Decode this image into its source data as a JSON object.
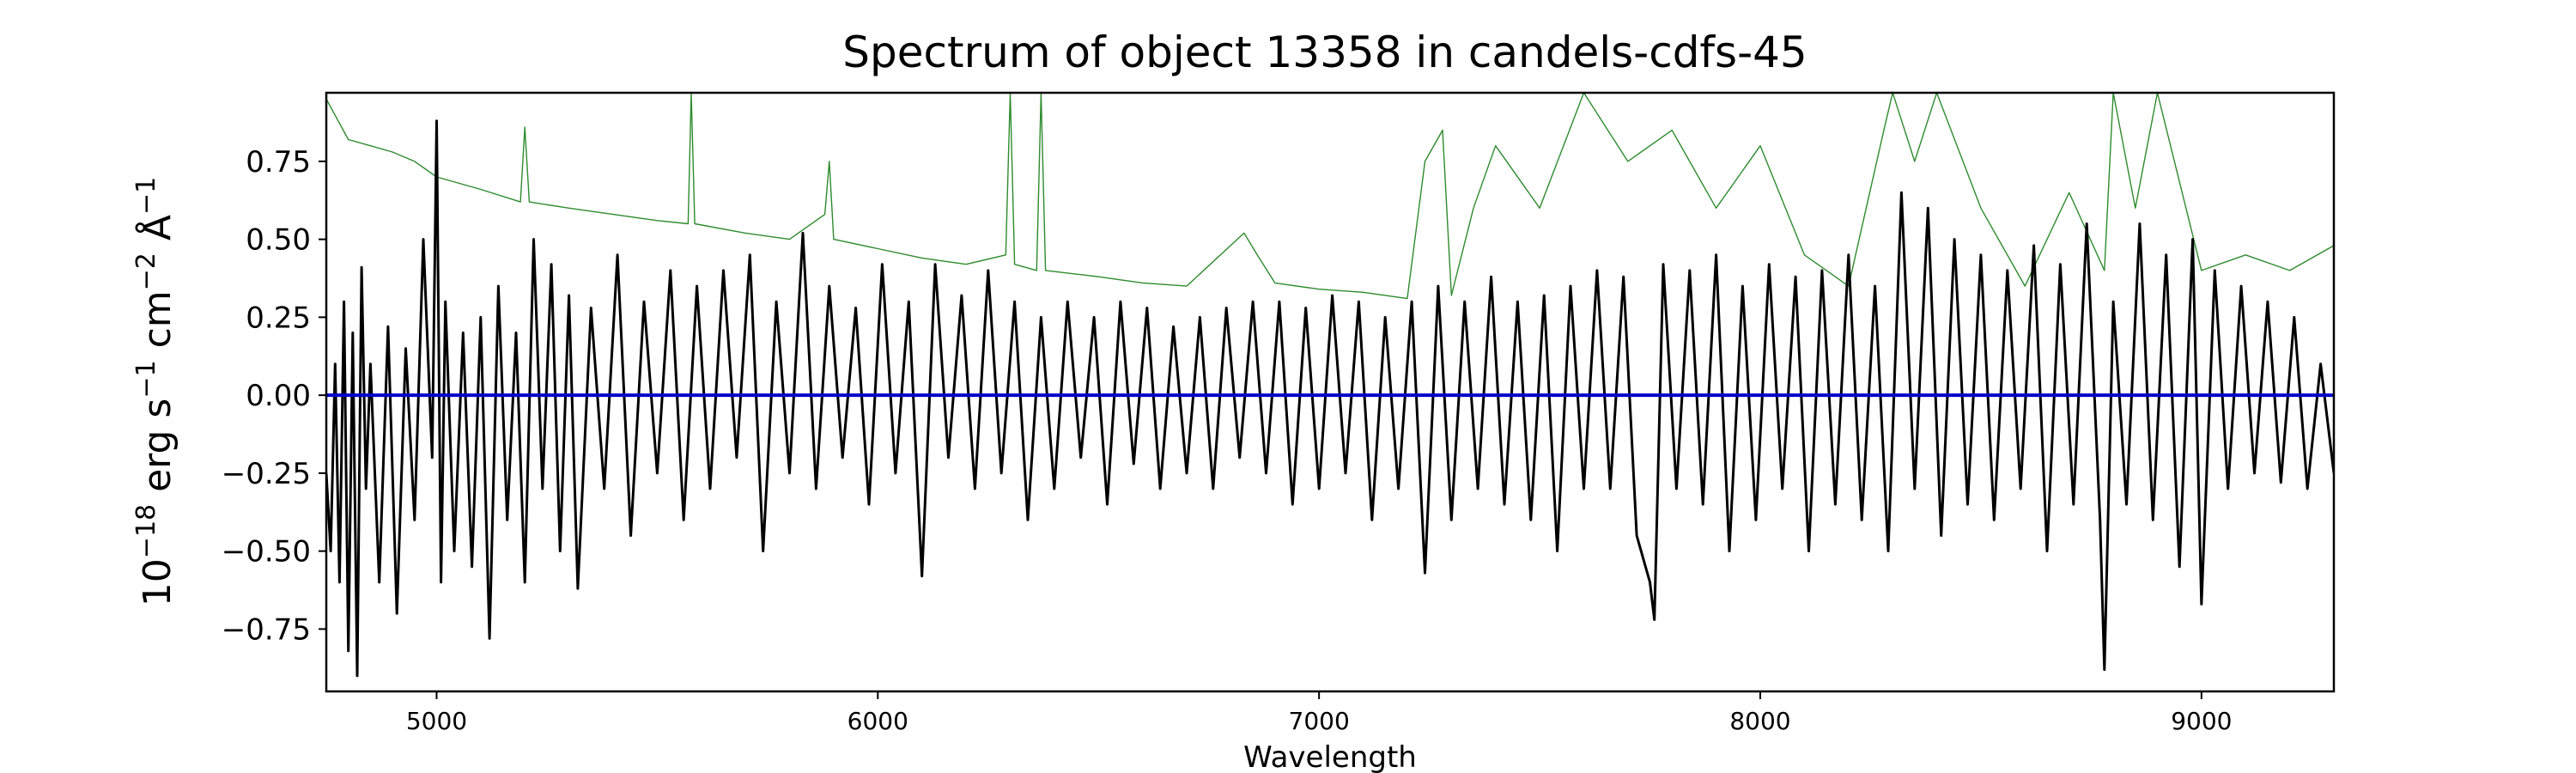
{
  "chart_data": {
    "type": "line",
    "title": "Spectrum of object 13358 in candels-cdfs-45",
    "xlabel": "Wavelength",
    "ylabel_base": "10",
    "ylabel_exp": "−18",
    "ylabel_units": [
      {
        "text": "erg s",
        "sup": "−1"
      },
      {
        "text": "cm",
        "sup": "−2"
      },
      {
        "text": "Å",
        "sup": "−1"
      }
    ],
    "xlim": [
      4750,
      9300
    ],
    "ylim": [
      -0.95,
      0.97
    ],
    "grid": false,
    "xticks": [
      5000,
      6000,
      7000,
      8000,
      9000
    ],
    "xtick_labels": [
      "5000",
      "6000",
      "7000",
      "8000",
      "9000"
    ],
    "yticks": [
      -0.75,
      -0.5,
      -0.25,
      0.0,
      0.25,
      0.5,
      0.75
    ],
    "ytick_labels": [
      "−0.75",
      "−0.50",
      "−0.25",
      "0.00",
      "0.25",
      "0.50",
      "0.75"
    ],
    "colors": {
      "flux": "#000000",
      "noise": "#2e8b2e",
      "zero": "#0000cc"
    },
    "series": [
      {
        "role": "noise",
        "x": [
          4750,
          4800,
          4850,
          4900,
          4950,
          5000,
          5100,
          5190,
          5200,
          5210,
          5300,
          5400,
          5500,
          5570,
          5577,
          5585,
          5700,
          5800,
          5880,
          5890,
          5900,
          6000,
          6100,
          6200,
          6290,
          6300,
          6310,
          6360,
          6370,
          6380,
          6500,
          6600,
          6700,
          6830,
          6860,
          6900,
          7000,
          7100,
          7200,
          7240,
          7280,
          7300,
          7350,
          7400,
          7500,
          7600,
          7700,
          7800,
          7900,
          8000,
          8100,
          8200,
          8280,
          8300,
          8350,
          8400,
          8500,
          8600,
          8700,
          8780,
          8800,
          8850,
          8900,
          9000,
          9100,
          9200,
          9300
        ],
        "values": [
          0.95,
          0.82,
          0.8,
          0.78,
          0.75,
          0.7,
          0.66,
          0.62,
          0.86,
          0.62,
          0.6,
          0.58,
          0.56,
          0.55,
          0.97,
          0.55,
          0.52,
          0.5,
          0.58,
          0.75,
          0.5,
          0.47,
          0.44,
          0.42,
          0.45,
          0.97,
          0.42,
          0.4,
          0.97,
          0.4,
          0.38,
          0.36,
          0.35,
          0.52,
          0.45,
          0.36,
          0.34,
          0.33,
          0.31,
          0.75,
          0.85,
          0.32,
          0.6,
          0.8,
          0.6,
          0.97,
          0.75,
          0.85,
          0.6,
          0.8,
          0.45,
          0.35,
          0.85,
          0.97,
          0.75,
          0.97,
          0.6,
          0.35,
          0.65,
          0.4,
          0.97,
          0.6,
          0.97,
          0.4,
          0.45,
          0.4,
          0.48
        ]
      },
      {
        "role": "flux",
        "x": [
          4750,
          4760,
          4770,
          4780,
          4790,
          4800,
          4810,
          4820,
          4830,
          4840,
          4850,
          4870,
          4890,
          4910,
          4930,
          4950,
          4970,
          4990,
          5000,
          5010,
          5020,
          5040,
          5060,
          5080,
          5100,
          5120,
          5140,
          5160,
          5180,
          5200,
          5220,
          5240,
          5260,
          5280,
          5300,
          5320,
          5350,
          5380,
          5410,
          5440,
          5470,
          5500,
          5530,
          5560,
          5590,
          5620,
          5650,
          5680,
          5710,
          5740,
          5770,
          5800,
          5830,
          5860,
          5890,
          5920,
          5950,
          5980,
          6010,
          6040,
          6070,
          6100,
          6130,
          6160,
          6190,
          6220,
          6250,
          6280,
          6310,
          6340,
          6370,
          6400,
          6430,
          6460,
          6490,
          6520,
          6550,
          6580,
          6610,
          6640,
          6670,
          6700,
          6730,
          6760,
          6790,
          6820,
          6850,
          6880,
          6910,
          6940,
          6970,
          7000,
          7030,
          7060,
          7090,
          7120,
          7150,
          7180,
          7210,
          7240,
          7270,
          7300,
          7330,
          7360,
          7390,
          7420,
          7450,
          7480,
          7510,
          7540,
          7570,
          7600,
          7630,
          7660,
          7690,
          7720,
          7750,
          7760,
          7780,
          7810,
          7840,
          7870,
          7900,
          7930,
          7960,
          7990,
          8020,
          8050,
          8080,
          8110,
          8140,
          8170,
          8200,
          8230,
          8260,
          8290,
          8320,
          8350,
          8380,
          8410,
          8440,
          8470,
          8500,
          8530,
          8560,
          8590,
          8620,
          8650,
          8680,
          8710,
          8740,
          8770,
          8780,
          8800,
          8830,
          8860,
          8890,
          8920,
          8950,
          8980,
          9000,
          9030,
          9060,
          9090,
          9120,
          9150,
          9180,
          9210,
          9240,
          9270,
          9300
        ],
        "values": [
          -0.25,
          -0.5,
          0.1,
          -0.6,
          0.3,
          -0.82,
          0.2,
          -0.9,
          0.41,
          -0.3,
          0.1,
          -0.6,
          0.22,
          -0.7,
          0.15,
          -0.4,
          0.5,
          -0.2,
          0.88,
          -0.6,
          0.3,
          -0.5,
          0.2,
          -0.55,
          0.25,
          -0.78,
          0.35,
          -0.4,
          0.2,
          -0.6,
          0.5,
          -0.3,
          0.42,
          -0.5,
          0.32,
          -0.62,
          0.28,
          -0.3,
          0.45,
          -0.45,
          0.3,
          -0.25,
          0.4,
          -0.4,
          0.35,
          -0.3,
          0.4,
          -0.2,
          0.45,
          -0.5,
          0.3,
          -0.25,
          0.52,
          -0.3,
          0.35,
          -0.2,
          0.28,
          -0.35,
          0.42,
          -0.25,
          0.3,
          -0.58,
          0.42,
          -0.2,
          0.32,
          -0.3,
          0.4,
          -0.25,
          0.3,
          -0.4,
          0.25,
          -0.3,
          0.3,
          -0.2,
          0.25,
          -0.35,
          0.3,
          -0.22,
          0.28,
          -0.3,
          0.22,
          -0.25,
          0.25,
          -0.3,
          0.28,
          -0.2,
          0.3,
          -0.25,
          0.3,
          -0.35,
          0.28,
          -0.3,
          0.32,
          -0.25,
          0.3,
          -0.4,
          0.25,
          -0.3,
          0.3,
          -0.57,
          0.35,
          -0.4,
          0.3,
          -0.3,
          0.38,
          -0.35,
          0.3,
          -0.4,
          0.32,
          -0.5,
          0.35,
          -0.3,
          0.4,
          -0.3,
          0.38,
          -0.45,
          -0.6,
          -0.72,
          0.42,
          -0.3,
          0.4,
          -0.35,
          0.45,
          -0.5,
          0.35,
          -0.4,
          0.42,
          -0.3,
          0.38,
          -0.5,
          0.4,
          -0.35,
          0.45,
          -0.4,
          0.35,
          -0.5,
          0.65,
          -0.3,
          0.6,
          -0.45,
          0.5,
          -0.35,
          0.45,
          -0.4,
          0.4,
          -0.3,
          0.48,
          -0.5,
          0.42,
          -0.35,
          0.55,
          -0.4,
          -0.88,
          0.3,
          -0.35,
          0.55,
          -0.4,
          0.45,
          -0.55,
          0.5,
          -0.67,
          0.4,
          -0.3,
          0.35,
          -0.25,
          0.3,
          -0.28,
          0.25,
          -0.3,
          0.1,
          -0.25
        ]
      }
    ]
  }
}
